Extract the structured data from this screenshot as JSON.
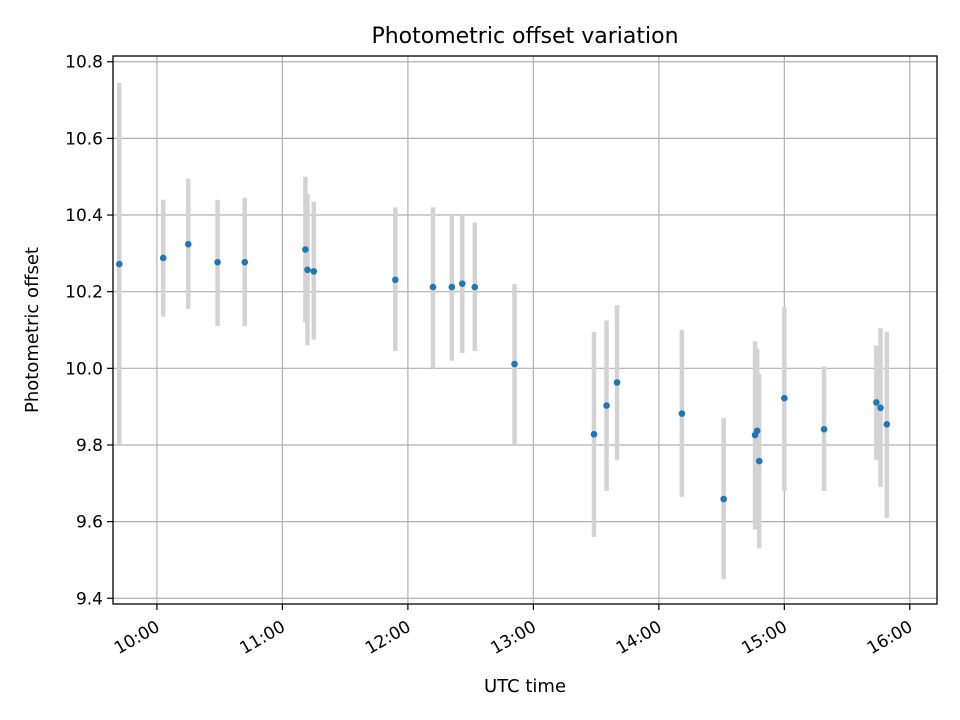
{
  "chart_data": {
    "type": "scatter",
    "title": "Photometric offset variation",
    "xlabel": "UTC time",
    "ylabel": "Photometric offset",
    "xlim": [
      "09:39",
      "16:13"
    ],
    "ylim": [
      9.385,
      10.815
    ],
    "x_ticks": [
      "10:00",
      "11:00",
      "12:00",
      "13:00",
      "14:00",
      "15:00",
      "16:00"
    ],
    "y_ticks": [
      9.4,
      9.6,
      9.8,
      10.0,
      10.2,
      10.4,
      10.6,
      10.8
    ],
    "y_tick_labels": [
      "9.4",
      "9.6",
      "9.8",
      "10.0",
      "10.2",
      "10.4",
      "10.6",
      "10.8"
    ],
    "grid": true,
    "colors": {
      "point": "#1f77b4",
      "errorbar": "#d3d3d3",
      "grid": "#b0b0b0"
    },
    "points": [
      {
        "x": "09:42",
        "y": 10.272,
        "ylow": 9.8,
        "yhigh": 10.745
      },
      {
        "x": "10:03",
        "y": 10.288,
        "ylow": 10.135,
        "yhigh": 10.44
      },
      {
        "x": "10:15",
        "y": 10.324,
        "ylow": 10.155,
        "yhigh": 10.495
      },
      {
        "x": "10:29",
        "y": 10.277,
        "ylow": 10.11,
        "yhigh": 10.44
      },
      {
        "x": "10:42",
        "y": 10.277,
        "ylow": 10.11,
        "yhigh": 10.445
      },
      {
        "x": "11:11",
        "y": 10.31,
        "ylow": 10.12,
        "yhigh": 10.5
      },
      {
        "x": "11:12",
        "y": 10.257,
        "ylow": 10.06,
        "yhigh": 10.455
      },
      {
        "x": "11:15",
        "y": 10.253,
        "ylow": 10.075,
        "yhigh": 10.435
      },
      {
        "x": "11:54",
        "y": 10.231,
        "ylow": 10.045,
        "yhigh": 10.42
      },
      {
        "x": "12:12",
        "y": 10.212,
        "ylow": 10.0,
        "yhigh": 10.42
      },
      {
        "x": "12:21",
        "y": 10.212,
        "ylow": 10.02,
        "yhigh": 10.4
      },
      {
        "x": "12:26",
        "y": 10.221,
        "ylow": 10.04,
        "yhigh": 10.4
      },
      {
        "x": "12:32",
        "y": 10.212,
        "ylow": 10.045,
        "yhigh": 10.38
      },
      {
        "x": "12:51",
        "y": 10.011,
        "ylow": 9.8,
        "yhigh": 10.22
      },
      {
        "x": "13:29",
        "y": 9.828,
        "ylow": 9.56,
        "yhigh": 10.095
      },
      {
        "x": "13:35",
        "y": 9.903,
        "ylow": 9.68,
        "yhigh": 10.125
      },
      {
        "x": "13:40",
        "y": 9.963,
        "ylow": 9.76,
        "yhigh": 10.165
      },
      {
        "x": "14:11",
        "y": 9.882,
        "ylow": 9.665,
        "yhigh": 10.1
      },
      {
        "x": "14:31",
        "y": 9.659,
        "ylow": 9.45,
        "yhigh": 9.87
      },
      {
        "x": "14:46",
        "y": 9.826,
        "ylow": 9.58,
        "yhigh": 10.07
      },
      {
        "x": "14:47",
        "y": 9.837,
        "ylow": 9.6,
        "yhigh": 10.05
      },
      {
        "x": "14:48",
        "y": 9.758,
        "ylow": 9.53,
        "yhigh": 9.985
      },
      {
        "x": "15:00",
        "y": 9.922,
        "ylow": 9.68,
        "yhigh": 10.16
      },
      {
        "x": "15:19",
        "y": 9.841,
        "ylow": 9.68,
        "yhigh": 10.005
      },
      {
        "x": "15:44",
        "y": 9.911,
        "ylow": 9.76,
        "yhigh": 10.06
      },
      {
        "x": "15:46",
        "y": 9.897,
        "ylow": 9.69,
        "yhigh": 10.105
      },
      {
        "x": "15:49",
        "y": 9.854,
        "ylow": 9.61,
        "yhigh": 10.095
      }
    ]
  }
}
